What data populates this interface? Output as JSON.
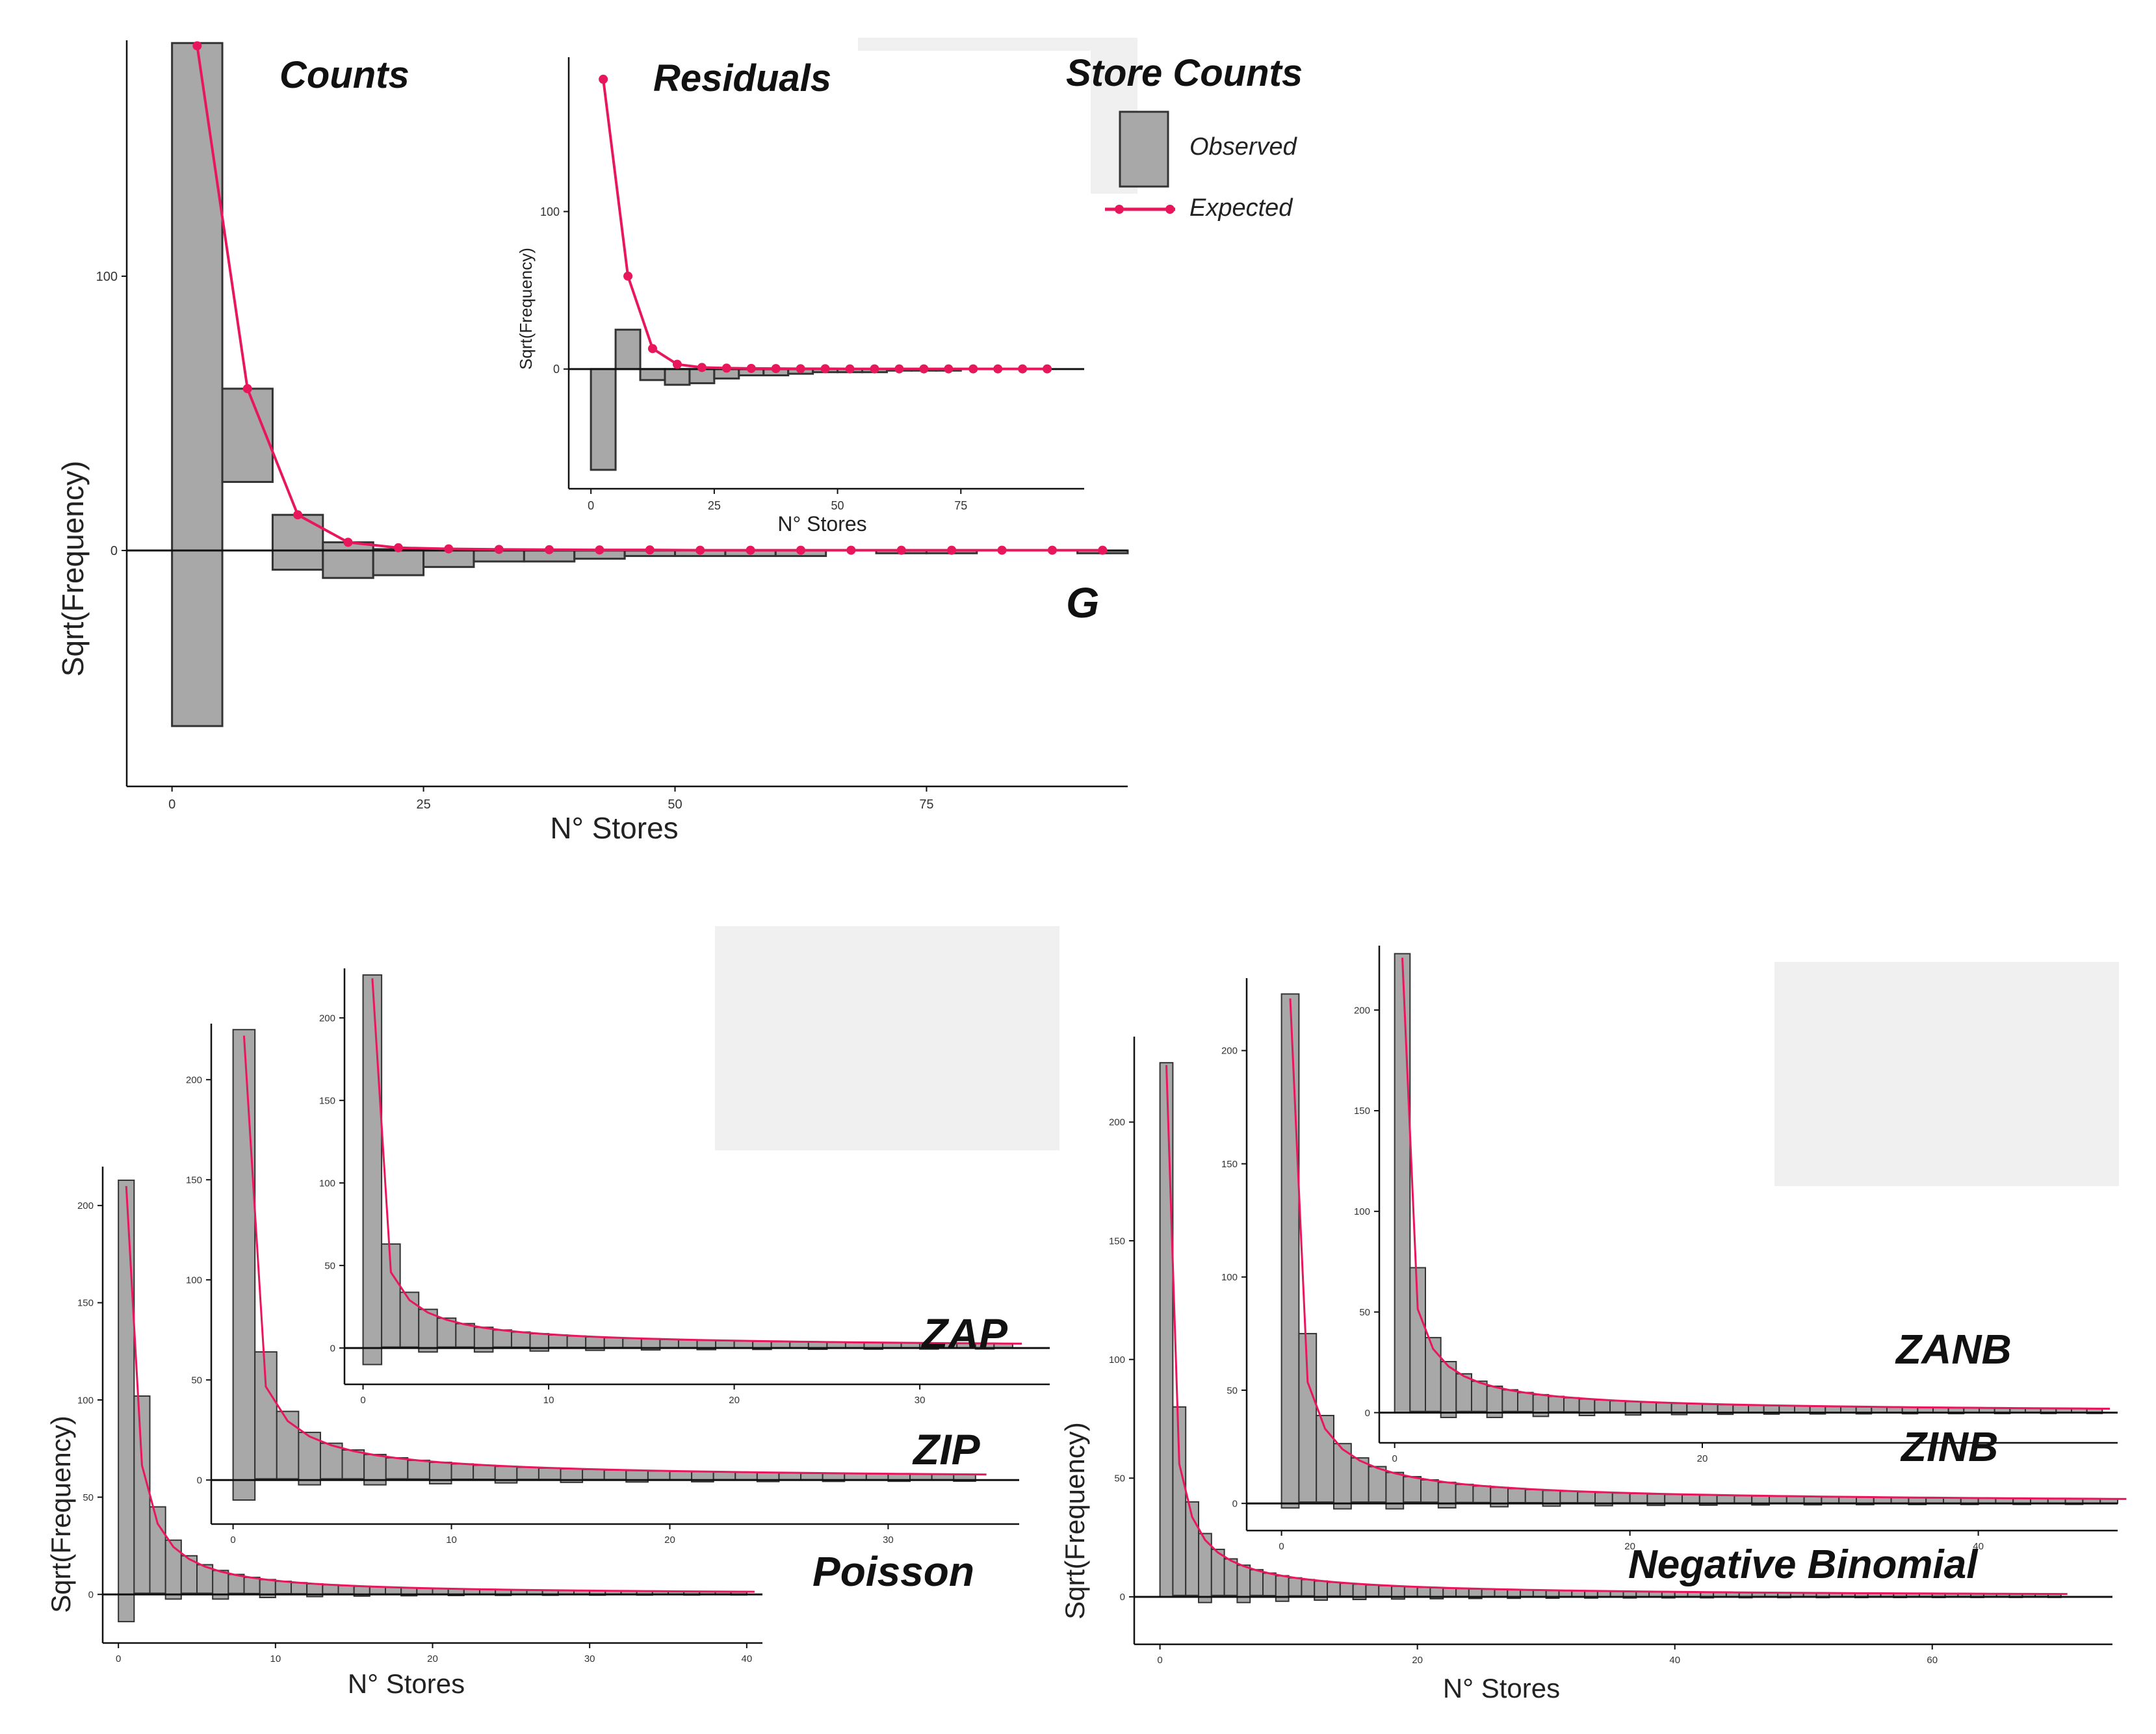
{
  "figure": {
    "colors": {
      "bar_fill": "#a8a8a8",
      "bar_stroke": "#333333",
      "expected": "#e8165a",
      "axis": "#111111",
      "grey_box": "#f0f0f0"
    },
    "legend": {
      "title": "Store Counts",
      "observed": "Observed",
      "expected": "Expected"
    }
  },
  "chart_data": [
    {
      "id": "counts",
      "type": "bar",
      "title": "Counts",
      "corner_label": "G",
      "xlabel": "N° Stores",
      "ylabel": "Sqrt(Frequency)",
      "xlim": [
        -4.5,
        95
      ],
      "ylim": [
        -86,
        186
      ],
      "xticks": [
        0,
        25,
        50,
        75
      ],
      "yticks": [
        0,
        100
      ],
      "bin_width": 5,
      "bar_starts": [
        0,
        5,
        10,
        15,
        20,
        25,
        30,
        35,
        40,
        45,
        50,
        55,
        60,
        65,
        70,
        75,
        80,
        85,
        90
      ],
      "bar_tops": [
        185,
        59,
        13,
        3,
        0.5,
        0,
        0,
        0,
        0,
        0,
        0,
        0,
        0,
        0,
        0,
        0,
        0,
        0,
        0
      ],
      "bar_bottoms": [
        -64,
        25,
        -7,
        -10,
        -9,
        -6,
        -4,
        -4,
        -3,
        -2,
        -2,
        -2,
        -2,
        0,
        -1,
        -1,
        0,
        0,
        -1
      ],
      "expected_x": [
        2.5,
        7.5,
        12.5,
        17.5,
        22.5,
        27.5,
        32.5,
        37.5,
        42.5,
        47.5,
        52.5,
        57.5,
        62.5,
        67.5,
        72.5,
        77.5,
        82.5,
        87.5,
        92.5
      ],
      "expected_y": [
        184,
        59,
        13,
        3,
        1,
        0.6,
        0.4,
        0.3,
        0.2,
        0.2,
        0.1,
        0.1,
        0.1,
        0.1,
        0.1,
        0.1,
        0.1,
        0.1,
        0.1
      ]
    },
    {
      "id": "residuals",
      "type": "bar",
      "title": "Residuals",
      "xlabel": "N° Stores",
      "ylabel": "Sqrt(Frequency)",
      "xlim": [
        -4.5,
        100
      ],
      "ylim": [
        -76,
        198
      ],
      "xticks": [
        0,
        25,
        50,
        75
      ],
      "yticks": [
        0,
        100
      ],
      "bin_width": 5,
      "bar_starts": [
        0,
        5,
        10,
        15,
        20,
        25,
        30,
        35,
        40,
        45,
        50,
        55,
        60,
        65,
        70,
        75,
        80,
        85,
        90
      ],
      "bar_tops": [
        0,
        25,
        0,
        0,
        0,
        0,
        0,
        0,
        0,
        0,
        0,
        0,
        0,
        0,
        0,
        0,
        0,
        0,
        0
      ],
      "bar_bottoms": [
        -64,
        0,
        -7,
        -10,
        -9,
        -6,
        -4,
        -4,
        -3,
        -2,
        -2,
        -2,
        -1,
        -1,
        -1,
        0,
        0,
        0,
        0
      ],
      "expected_x": [
        2.5,
        7.5,
        12.5,
        17.5,
        22.5,
        27.5,
        32.5,
        37.5,
        42.5,
        47.5,
        52.5,
        57.5,
        62.5,
        67.5,
        72.5,
        77.5,
        82.5,
        87.5,
        92.5
      ],
      "expected_y": [
        184,
        59,
        13,
        3,
        1,
        0.6,
        0.4,
        0.3,
        0.2,
        0.2,
        0.1,
        0.1,
        0.1,
        0.1,
        0.1,
        0.1,
        0.1,
        0.1,
        0.1
      ]
    },
    {
      "id": "poisson",
      "type": "bar",
      "corner_label": "Poisson",
      "xlabel": "N° Stores",
      "ylabel": "Sqrt(Frequency)",
      "xlim": [
        -1,
        41
      ],
      "ylim": [
        -25,
        220
      ],
      "xticks": [
        0,
        10,
        20,
        30,
        40
      ],
      "yticks": [
        0,
        50,
        100,
        150,
        200
      ],
      "decay": {
        "first_top": 213,
        "first_bottom": -14,
        "decay_base": 102,
        "decay_power": 1.18,
        "bins": 40
      },
      "expected_first": 210
    },
    {
      "id": "zip",
      "type": "bar",
      "corner_label": "ZIP",
      "xlim": [
        -1,
        36
      ],
      "ylim": [
        -22,
        228
      ],
      "xticks": [
        0,
        10,
        20,
        30
      ],
      "yticks": [
        0,
        50,
        100,
        150,
        200
      ],
      "decay": {
        "first_top": 225,
        "first_bottom": -10,
        "decay_base": 64,
        "decay_power": 0.9,
        "bins": 34
      },
      "expected_first": 222
    },
    {
      "id": "zap",
      "type": "bar",
      "corner_label": "ZAP",
      "xlim": [
        -1,
        37
      ],
      "ylim": [
        -22,
        230
      ],
      "xticks": [
        0,
        10,
        20,
        30
      ],
      "yticks": [
        0,
        50,
        100,
        150,
        200
      ],
      "decay": {
        "first_top": 226,
        "first_bottom": -10,
        "decay_base": 63,
        "decay_power": 0.9,
        "bins": 35
      },
      "expected_first": 224
    },
    {
      "id": "negbin",
      "type": "bar",
      "corner_label": "Negative Binomial",
      "xlabel": "N° Stores",
      "ylabel": "Sqrt(Frequency)",
      "xlim": [
        -2,
        74
      ],
      "ylim": [
        -20,
        236
      ],
      "xticks": [
        0,
        20,
        40,
        60
      ],
      "yticks": [
        0,
        50,
        100,
        150,
        200
      ],
      "decay": {
        "first_top": 225,
        "first_bottom": 0,
        "decay_base": 80,
        "decay_power": 1.0,
        "bins": 70
      },
      "expected_first": 224
    },
    {
      "id": "zinb",
      "type": "bar",
      "corner_label": "ZINB",
      "xlim": [
        -2,
        48
      ],
      "ylim": [
        -12,
        232
      ],
      "xticks": [
        0,
        20,
        40
      ],
      "yticks": [
        0,
        50,
        100,
        150,
        200
      ],
      "decay": {
        "first_top": 225,
        "first_bottom": -2,
        "decay_base": 75,
        "decay_power": 0.95,
        "bins": 48
      },
      "expected_first": 223
    },
    {
      "id": "zanb",
      "type": "bar",
      "corner_label": "ZANB",
      "xlim": [
        -1,
        47
      ],
      "ylim": [
        -15,
        232
      ],
      "xticks": [
        0,
        20
      ],
      "yticks": [
        0,
        50,
        100,
        150,
        200
      ],
      "decay": {
        "first_top": 228,
        "first_bottom": 0,
        "decay_base": 72,
        "decay_power": 0.95,
        "bins": 46
      },
      "expected_first": 226
    }
  ]
}
